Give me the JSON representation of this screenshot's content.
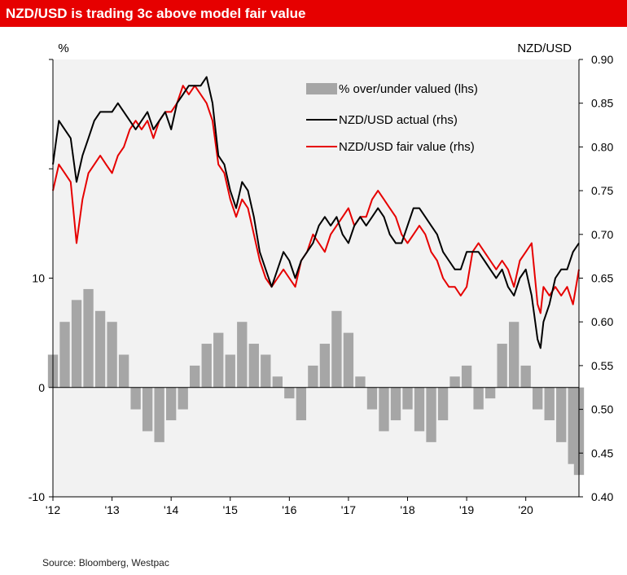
{
  "title": "NZD/USD is trading 3c above model fair value",
  "source": "Source: Bloomberg, Westpac",
  "colors": {
    "title_bg": "#e60000",
    "bars": "#a6a6a6",
    "actual": "#000000",
    "fair": "#e60000",
    "plot_bg": "#f2f2f2"
  },
  "chart_data": {
    "type": "line",
    "title": "NZD/USD is trading 3c above model fair value",
    "left_axis": {
      "label": "%",
      "range": [
        -10,
        30
      ],
      "ticks": [
        -10,
        0,
        10
      ]
    },
    "right_axis": {
      "label": "NZD/USD",
      "range": [
        0.4,
        0.9
      ],
      "ticks": [
        "0.40",
        "0.45",
        "0.50",
        "0.55",
        "0.60",
        "0.65",
        "0.70",
        "0.75",
        "0.80",
        "0.85",
        "0.90"
      ]
    },
    "x_axis": {
      "range": [
        2012.0,
        2020.9
      ],
      "ticks": [
        {
          "label": "'12",
          "x": 2012
        },
        {
          "label": "'13",
          "x": 2013
        },
        {
          "label": "'14",
          "x": 2014
        },
        {
          "label": "'15",
          "x": 2015
        },
        {
          "label": "'16",
          "x": 2016
        },
        {
          "label": "'17",
          "x": 2017
        },
        {
          "label": "'18",
          "x": 2018
        },
        {
          "label": "'19",
          "x": 2019
        },
        {
          "label": "'20",
          "x": 2020
        }
      ]
    },
    "legend_position": "top-center",
    "series": [
      {
        "name": "% over/under valued (lhs)",
        "type": "bar",
        "axis": "left",
        "x": [
          2012.0,
          2012.2,
          2012.4,
          2012.6,
          2012.8,
          2013.0,
          2013.2,
          2013.4,
          2013.6,
          2013.8,
          2014.0,
          2014.2,
          2014.4,
          2014.6,
          2014.8,
          2015.0,
          2015.2,
          2015.4,
          2015.6,
          2015.8,
          2016.0,
          2016.2,
          2016.4,
          2016.6,
          2016.8,
          2017.0,
          2017.2,
          2017.4,
          2017.6,
          2017.8,
          2018.0,
          2018.2,
          2018.4,
          2018.6,
          2018.8,
          2019.0,
          2019.2,
          2019.4,
          2019.6,
          2019.8,
          2020.0,
          2020.2,
          2020.4,
          2020.6,
          2020.8,
          2020.9
        ],
        "values": [
          3,
          6,
          8,
          9,
          7,
          6,
          3,
          -2,
          -4,
          -5,
          -3,
          -2,
          2,
          4,
          5,
          3,
          6,
          4,
          3,
          1,
          -1,
          -3,
          2,
          4,
          7,
          5,
          1,
          -2,
          -4,
          -3,
          -2,
          -4,
          -5,
          -3,
          1,
          2,
          -2,
          -1,
          4,
          6,
          2,
          -2,
          -3,
          -5,
          -7,
          -8
        ]
      },
      {
        "name": "NZD/USD actual (rhs)",
        "type": "line",
        "axis": "right",
        "x": [
          2012.0,
          2012.1,
          2012.2,
          2012.3,
          2012.4,
          2012.5,
          2012.6,
          2012.7,
          2012.8,
          2012.9,
          2013.0,
          2013.1,
          2013.2,
          2013.3,
          2013.4,
          2013.5,
          2013.6,
          2013.7,
          2013.8,
          2013.9,
          2014.0,
          2014.1,
          2014.2,
          2014.3,
          2014.4,
          2014.5,
          2014.6,
          2014.7,
          2014.8,
          2014.9,
          2015.0,
          2015.1,
          2015.2,
          2015.3,
          2015.4,
          2015.5,
          2015.6,
          2015.7,
          2015.8,
          2015.9,
          2016.0,
          2016.1,
          2016.2,
          2016.3,
          2016.4,
          2016.5,
          2016.6,
          2016.7,
          2016.8,
          2016.9,
          2017.0,
          2017.1,
          2017.2,
          2017.3,
          2017.4,
          2017.5,
          2017.6,
          2017.7,
          2017.8,
          2017.9,
          2018.0,
          2018.1,
          2018.2,
          2018.3,
          2018.4,
          2018.5,
          2018.6,
          2018.7,
          2018.8,
          2018.9,
          2019.0,
          2019.1,
          2019.2,
          2019.3,
          2019.4,
          2019.5,
          2019.6,
          2019.7,
          2019.8,
          2019.9,
          2020.0,
          2020.1,
          2020.2,
          2020.25,
          2020.3,
          2020.4,
          2020.5,
          2020.6,
          2020.7,
          2020.8,
          2020.9
        ],
        "values": [
          0.78,
          0.83,
          0.82,
          0.81,
          0.76,
          0.79,
          0.81,
          0.83,
          0.84,
          0.84,
          0.84,
          0.85,
          0.84,
          0.83,
          0.82,
          0.83,
          0.84,
          0.82,
          0.83,
          0.84,
          0.82,
          0.85,
          0.86,
          0.87,
          0.87,
          0.87,
          0.88,
          0.85,
          0.79,
          0.78,
          0.75,
          0.73,
          0.76,
          0.75,
          0.72,
          0.68,
          0.66,
          0.64,
          0.66,
          0.68,
          0.67,
          0.65,
          0.67,
          0.68,
          0.69,
          0.71,
          0.72,
          0.71,
          0.72,
          0.7,
          0.69,
          0.71,
          0.72,
          0.71,
          0.72,
          0.73,
          0.72,
          0.7,
          0.69,
          0.69,
          0.71,
          0.73,
          0.73,
          0.72,
          0.71,
          0.7,
          0.68,
          0.67,
          0.66,
          0.66,
          0.68,
          0.68,
          0.68,
          0.67,
          0.66,
          0.65,
          0.66,
          0.64,
          0.63,
          0.65,
          0.66,
          0.63,
          0.58,
          0.57,
          0.6,
          0.62,
          0.65,
          0.66,
          0.66,
          0.68,
          0.69
        ]
      },
      {
        "name": "NZD/USD fair value (rhs)",
        "type": "line",
        "axis": "right",
        "x": [
          2012.0,
          2012.1,
          2012.2,
          2012.3,
          2012.4,
          2012.5,
          2012.6,
          2012.7,
          2012.8,
          2012.9,
          2013.0,
          2013.1,
          2013.2,
          2013.3,
          2013.4,
          2013.5,
          2013.6,
          2013.7,
          2013.8,
          2013.9,
          2014.0,
          2014.1,
          2014.2,
          2014.3,
          2014.4,
          2014.5,
          2014.6,
          2014.7,
          2014.8,
          2014.9,
          2015.0,
          2015.1,
          2015.2,
          2015.3,
          2015.4,
          2015.5,
          2015.6,
          2015.7,
          2015.8,
          2015.9,
          2016.0,
          2016.1,
          2016.2,
          2016.3,
          2016.4,
          2016.5,
          2016.6,
          2016.7,
          2016.8,
          2016.9,
          2017.0,
          2017.1,
          2017.2,
          2017.3,
          2017.4,
          2017.5,
          2017.6,
          2017.7,
          2017.8,
          2017.9,
          2018.0,
          2018.1,
          2018.2,
          2018.3,
          2018.4,
          2018.5,
          2018.6,
          2018.7,
          2018.8,
          2018.9,
          2019.0,
          2019.1,
          2019.2,
          2019.3,
          2019.4,
          2019.5,
          2019.6,
          2019.7,
          2019.8,
          2019.9,
          2020.0,
          2020.1,
          2020.2,
          2020.25,
          2020.3,
          2020.4,
          2020.5,
          2020.6,
          2020.7,
          2020.8,
          2020.9
        ],
        "values": [
          0.75,
          0.78,
          0.77,
          0.76,
          0.69,
          0.74,
          0.77,
          0.78,
          0.79,
          0.78,
          0.77,
          0.79,
          0.8,
          0.82,
          0.83,
          0.82,
          0.83,
          0.81,
          0.83,
          0.84,
          0.84,
          0.85,
          0.87,
          0.86,
          0.87,
          0.86,
          0.85,
          0.83,
          0.78,
          0.77,
          0.74,
          0.72,
          0.74,
          0.73,
          0.7,
          0.67,
          0.65,
          0.64,
          0.65,
          0.66,
          0.65,
          0.64,
          0.67,
          0.68,
          0.7,
          0.69,
          0.68,
          0.7,
          0.71,
          0.72,
          0.73,
          0.71,
          0.72,
          0.72,
          0.74,
          0.75,
          0.74,
          0.73,
          0.72,
          0.7,
          0.69,
          0.7,
          0.71,
          0.7,
          0.68,
          0.67,
          0.65,
          0.64,
          0.64,
          0.63,
          0.64,
          0.68,
          0.69,
          0.68,
          0.67,
          0.66,
          0.67,
          0.66,
          0.64,
          0.67,
          0.68,
          0.69,
          0.62,
          0.61,
          0.64,
          0.63,
          0.64,
          0.63,
          0.64,
          0.62,
          0.66
        ]
      }
    ]
  }
}
